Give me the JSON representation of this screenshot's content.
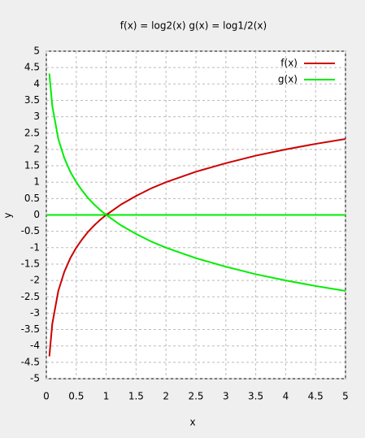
{
  "chart_data": {
    "type": "line",
    "title": "f(x) = log2(x)  g(x) = log1/2(x)",
    "x_label": "x",
    "y_label": "y",
    "x": [
      0.05,
      0.1,
      0.2,
      0.3,
      0.4,
      0.5,
      0.6,
      0.7,
      0.8,
      0.9,
      1,
      1.25,
      1.5,
      1.75,
      2,
      2.5,
      3,
      3.5,
      4,
      4.5,
      5
    ],
    "series": [
      {
        "name": "f(x)",
        "color": "#cc0000",
        "values": [
          -4.32,
          -3.32,
          -2.32,
          -1.74,
          -1.32,
          -1,
          -0.74,
          -0.51,
          -0.32,
          -0.15,
          0,
          0.32,
          0.58,
          0.81,
          1,
          1.32,
          1.58,
          1.81,
          2,
          2.17,
          2.32
        ]
      },
      {
        "name": "g(x)",
        "color": "#00ee00",
        "values": [
          4.32,
          3.32,
          2.32,
          1.74,
          1.32,
          1,
          0.74,
          0.51,
          0.32,
          0.15,
          0,
          -0.32,
          -0.58,
          -0.81,
          -1,
          -1.32,
          -1.58,
          -1.81,
          -2,
          -2.17,
          -2.32
        ]
      }
    ],
    "xlim": [
      0,
      5
    ],
    "xticks": [
      0,
      0.5,
      1,
      1.5,
      2,
      2.5,
      3,
      3.5,
      4,
      4.5,
      5
    ],
    "ylim": [
      -5,
      5
    ],
    "yticks": [
      -5,
      -4.5,
      -4,
      -3.5,
      -3,
      -2.5,
      -2,
      -1.5,
      -1,
      -0.5,
      0,
      0.5,
      1,
      1.5,
      2,
      2.5,
      3,
      3.5,
      4,
      4.5,
      5
    ],
    "grid": true,
    "legend": "top-right"
  }
}
